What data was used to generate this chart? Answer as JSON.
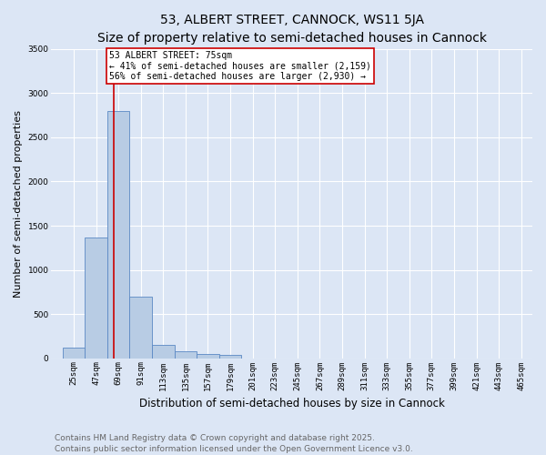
{
  "title": "53, ALBERT STREET, CANNOCK, WS11 5JA",
  "subtitle": "Size of property relative to semi-detached houses in Cannock",
  "xlabel": "Distribution of semi-detached houses by size in Cannock",
  "ylabel": "Number of semi-detached properties",
  "bin_labels": [
    "25sqm",
    "47sqm",
    "69sqm",
    "91sqm",
    "113sqm",
    "135sqm",
    "157sqm",
    "179sqm",
    "201sqm",
    "223sqm",
    "245sqm",
    "267sqm",
    "289sqm",
    "311sqm",
    "333sqm",
    "355sqm",
    "377sqm",
    "399sqm",
    "421sqm",
    "443sqm",
    "465sqm"
  ],
  "bin_starts": [
    25,
    47,
    69,
    91,
    113,
    135,
    157,
    179,
    201,
    223,
    245,
    267,
    289,
    311,
    333,
    355,
    377,
    399,
    421,
    443,
    465
  ],
  "bin_width": 22,
  "bar_values": [
    120,
    1370,
    2800,
    700,
    155,
    80,
    45,
    35,
    0,
    0,
    0,
    0,
    0,
    0,
    0,
    0,
    0,
    0,
    0,
    0,
    0
  ],
  "bar_color": "#b8cce4",
  "bar_edge_color": "#5b88c4",
  "bg_color": "#dce6f5",
  "grid_color": "#ffffff",
  "vline_x": 75,
  "vline_color": "#cc0000",
  "ann_line1": "53 ALBERT STREET: 75sqm",
  "ann_line2": "← 41% of semi-detached houses are smaller (2,159)",
  "ann_line3": "56% of semi-detached houses are larger (2,930) →",
  "ann_box_color": "#ffffff",
  "ann_edge_color": "#cc0000",
  "ylim": [
    0,
    3500
  ],
  "xlim_min": 14,
  "xlim_max": 487,
  "title_fontsize": 10,
  "subtitle_fontsize": 9.5,
  "ylabel_fontsize": 8,
  "xlabel_fontsize": 8.5,
  "tick_fontsize": 6.5,
  "ann_fontsize": 7,
  "footer_line1": "Contains HM Land Registry data © Crown copyright and database right 2025.",
  "footer_line2": "Contains public sector information licensed under the Open Government Licence v3.0.",
  "footer_fontsize": 6.5,
  "footer_color": "#666666"
}
